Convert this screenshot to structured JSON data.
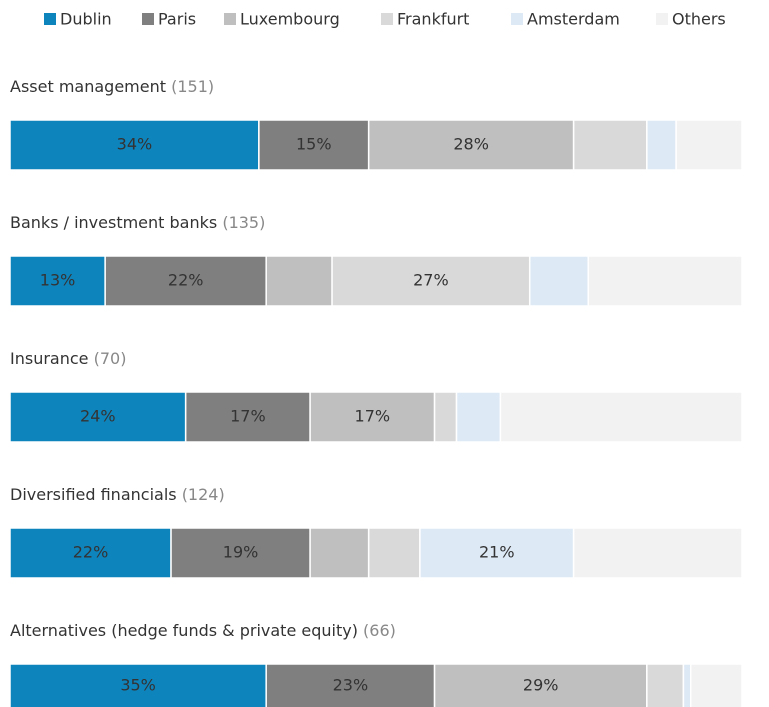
{
  "chart_data": {
    "type": "bar",
    "orientation": "horizontal",
    "stacked": true,
    "categories": [
      "Asset management",
      "Banks / investment banks",
      "Insurance",
      "Diversified financials",
      "Alternatives (hedge funds & private equity)"
    ],
    "category_counts": [
      "(151)",
      "(135)",
      "(70)",
      "(124)",
      "(66)"
    ],
    "xlim": [
      0,
      100
    ],
    "legend": "top",
    "series": [
      {
        "name": "Dublin",
        "color": "#0e84bd",
        "values": [
          34,
          13,
          24,
          22,
          35
        ],
        "value_labels": [
          "34%",
          "13%",
          "24%",
          "22%",
          "35%"
        ]
      },
      {
        "name": "Paris",
        "color": "#7f7f7f",
        "values": [
          15,
          22,
          17,
          19,
          23
        ],
        "value_labels": [
          "15%",
          "22%",
          "17%",
          "19%",
          "23%"
        ]
      },
      {
        "name": "Luxembourg",
        "color": "#bfbfbf",
        "values": [
          28,
          9,
          17,
          8,
          29
        ],
        "value_labels": [
          "28%",
          null,
          "17%",
          null,
          "29%"
        ]
      },
      {
        "name": "Frankfurt",
        "color": "#d9d9d9",
        "values": [
          10,
          27,
          3,
          7,
          5
        ],
        "value_labels": [
          null,
          "27%",
          null,
          null,
          null
        ]
      },
      {
        "name": "Amsterdam",
        "color": "#dde9f5",
        "values": [
          4,
          8,
          6,
          21,
          1
        ],
        "value_labels": [
          null,
          null,
          null,
          "21%",
          null
        ]
      },
      {
        "name": "Others",
        "color": "#f2f2f2",
        "values": [
          9,
          21,
          33,
          23,
          7
        ],
        "value_labels": [
          null,
          null,
          null,
          null,
          null
        ]
      }
    ]
  }
}
